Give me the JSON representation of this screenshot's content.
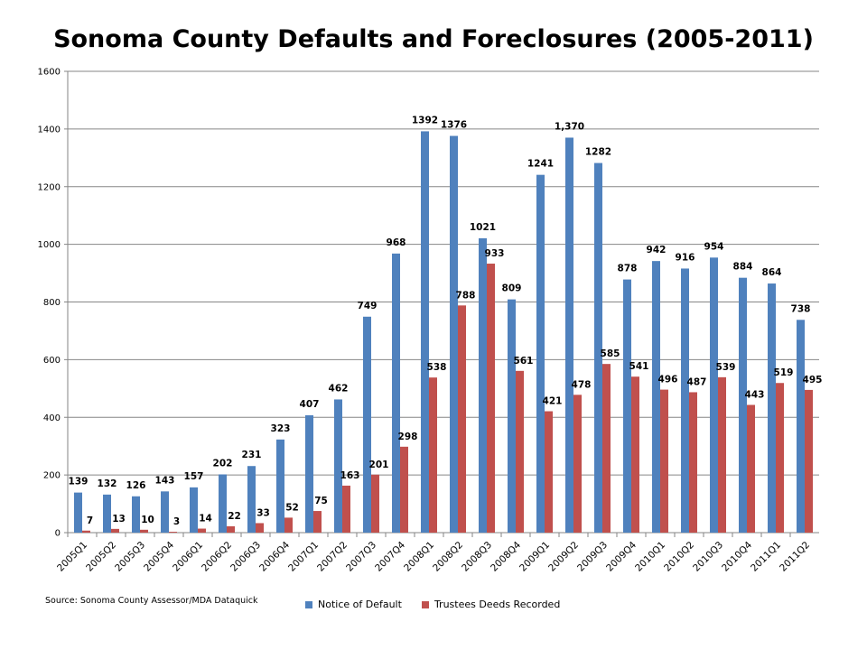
{
  "chart_data": {
    "type": "bar",
    "title": "Sonoma County Defaults and Foreclosures (2005-2011)",
    "source": "Source: Sonoma County Assessor/MDA Dataquick",
    "categories": [
      "2005Q1",
      "2005Q2",
      "2005Q3",
      "2005Q4",
      "2006Q1",
      "2006Q2",
      "2006Q3",
      "2006Q4",
      "2007Q1",
      "2007Q2",
      "2007Q3",
      "2007Q4",
      "2008Q1",
      "2008Q2",
      "2008Q3",
      "2008Q4",
      "2009Q1",
      "2009Q2",
      "2009Q3",
      "2009Q4",
      "2010Q1",
      "2010Q2",
      "2010Q3",
      "2010Q4",
      "2011Q1",
      "2011Q2"
    ],
    "series": [
      {
        "name": "Notice of Default",
        "color": "#4F81BD",
        "values": [
          139,
          132,
          126,
          143,
          157,
          202,
          231,
          323,
          407,
          462,
          749,
          968,
          1392,
          1376,
          1021,
          809,
          1241,
          1370,
          1282,
          878,
          942,
          916,
          954,
          884,
          864,
          738
        ],
        "labels": [
          "139",
          "132",
          "126",
          "143",
          "157",
          "202",
          "231",
          "323",
          "407",
          "462",
          "749",
          "968",
          "1392",
          "1376",
          "1021",
          "809",
          "1241",
          "1,370",
          "1282",
          "878",
          "942",
          "916",
          "954",
          "884",
          "864",
          "738"
        ]
      },
      {
        "name": "Trustees Deeds Recorded",
        "color": "#C0504D",
        "values": [
          7,
          13,
          10,
          3,
          14,
          22,
          33,
          52,
          75,
          163,
          201,
          298,
          538,
          788,
          933,
          561,
          421,
          478,
          585,
          541,
          496,
          487,
          539,
          443,
          519,
          495
        ],
        "labels": [
          "7",
          "13",
          "10",
          "3",
          "14",
          "22",
          "33",
          "52",
          "75",
          "163",
          "201",
          "298",
          "538",
          "788",
          "933",
          "561",
          "421",
          "478",
          "585",
          "541",
          "496",
          "487",
          "539",
          "443",
          "519",
          "495"
        ]
      }
    ],
    "ylim": [
      0,
      1600
    ],
    "yticks": [
      "0",
      "200",
      "400",
      "600",
      "800",
      "1000",
      "1200",
      "1400",
      "1600"
    ],
    "grid": true,
    "legend": "bottom"
  }
}
